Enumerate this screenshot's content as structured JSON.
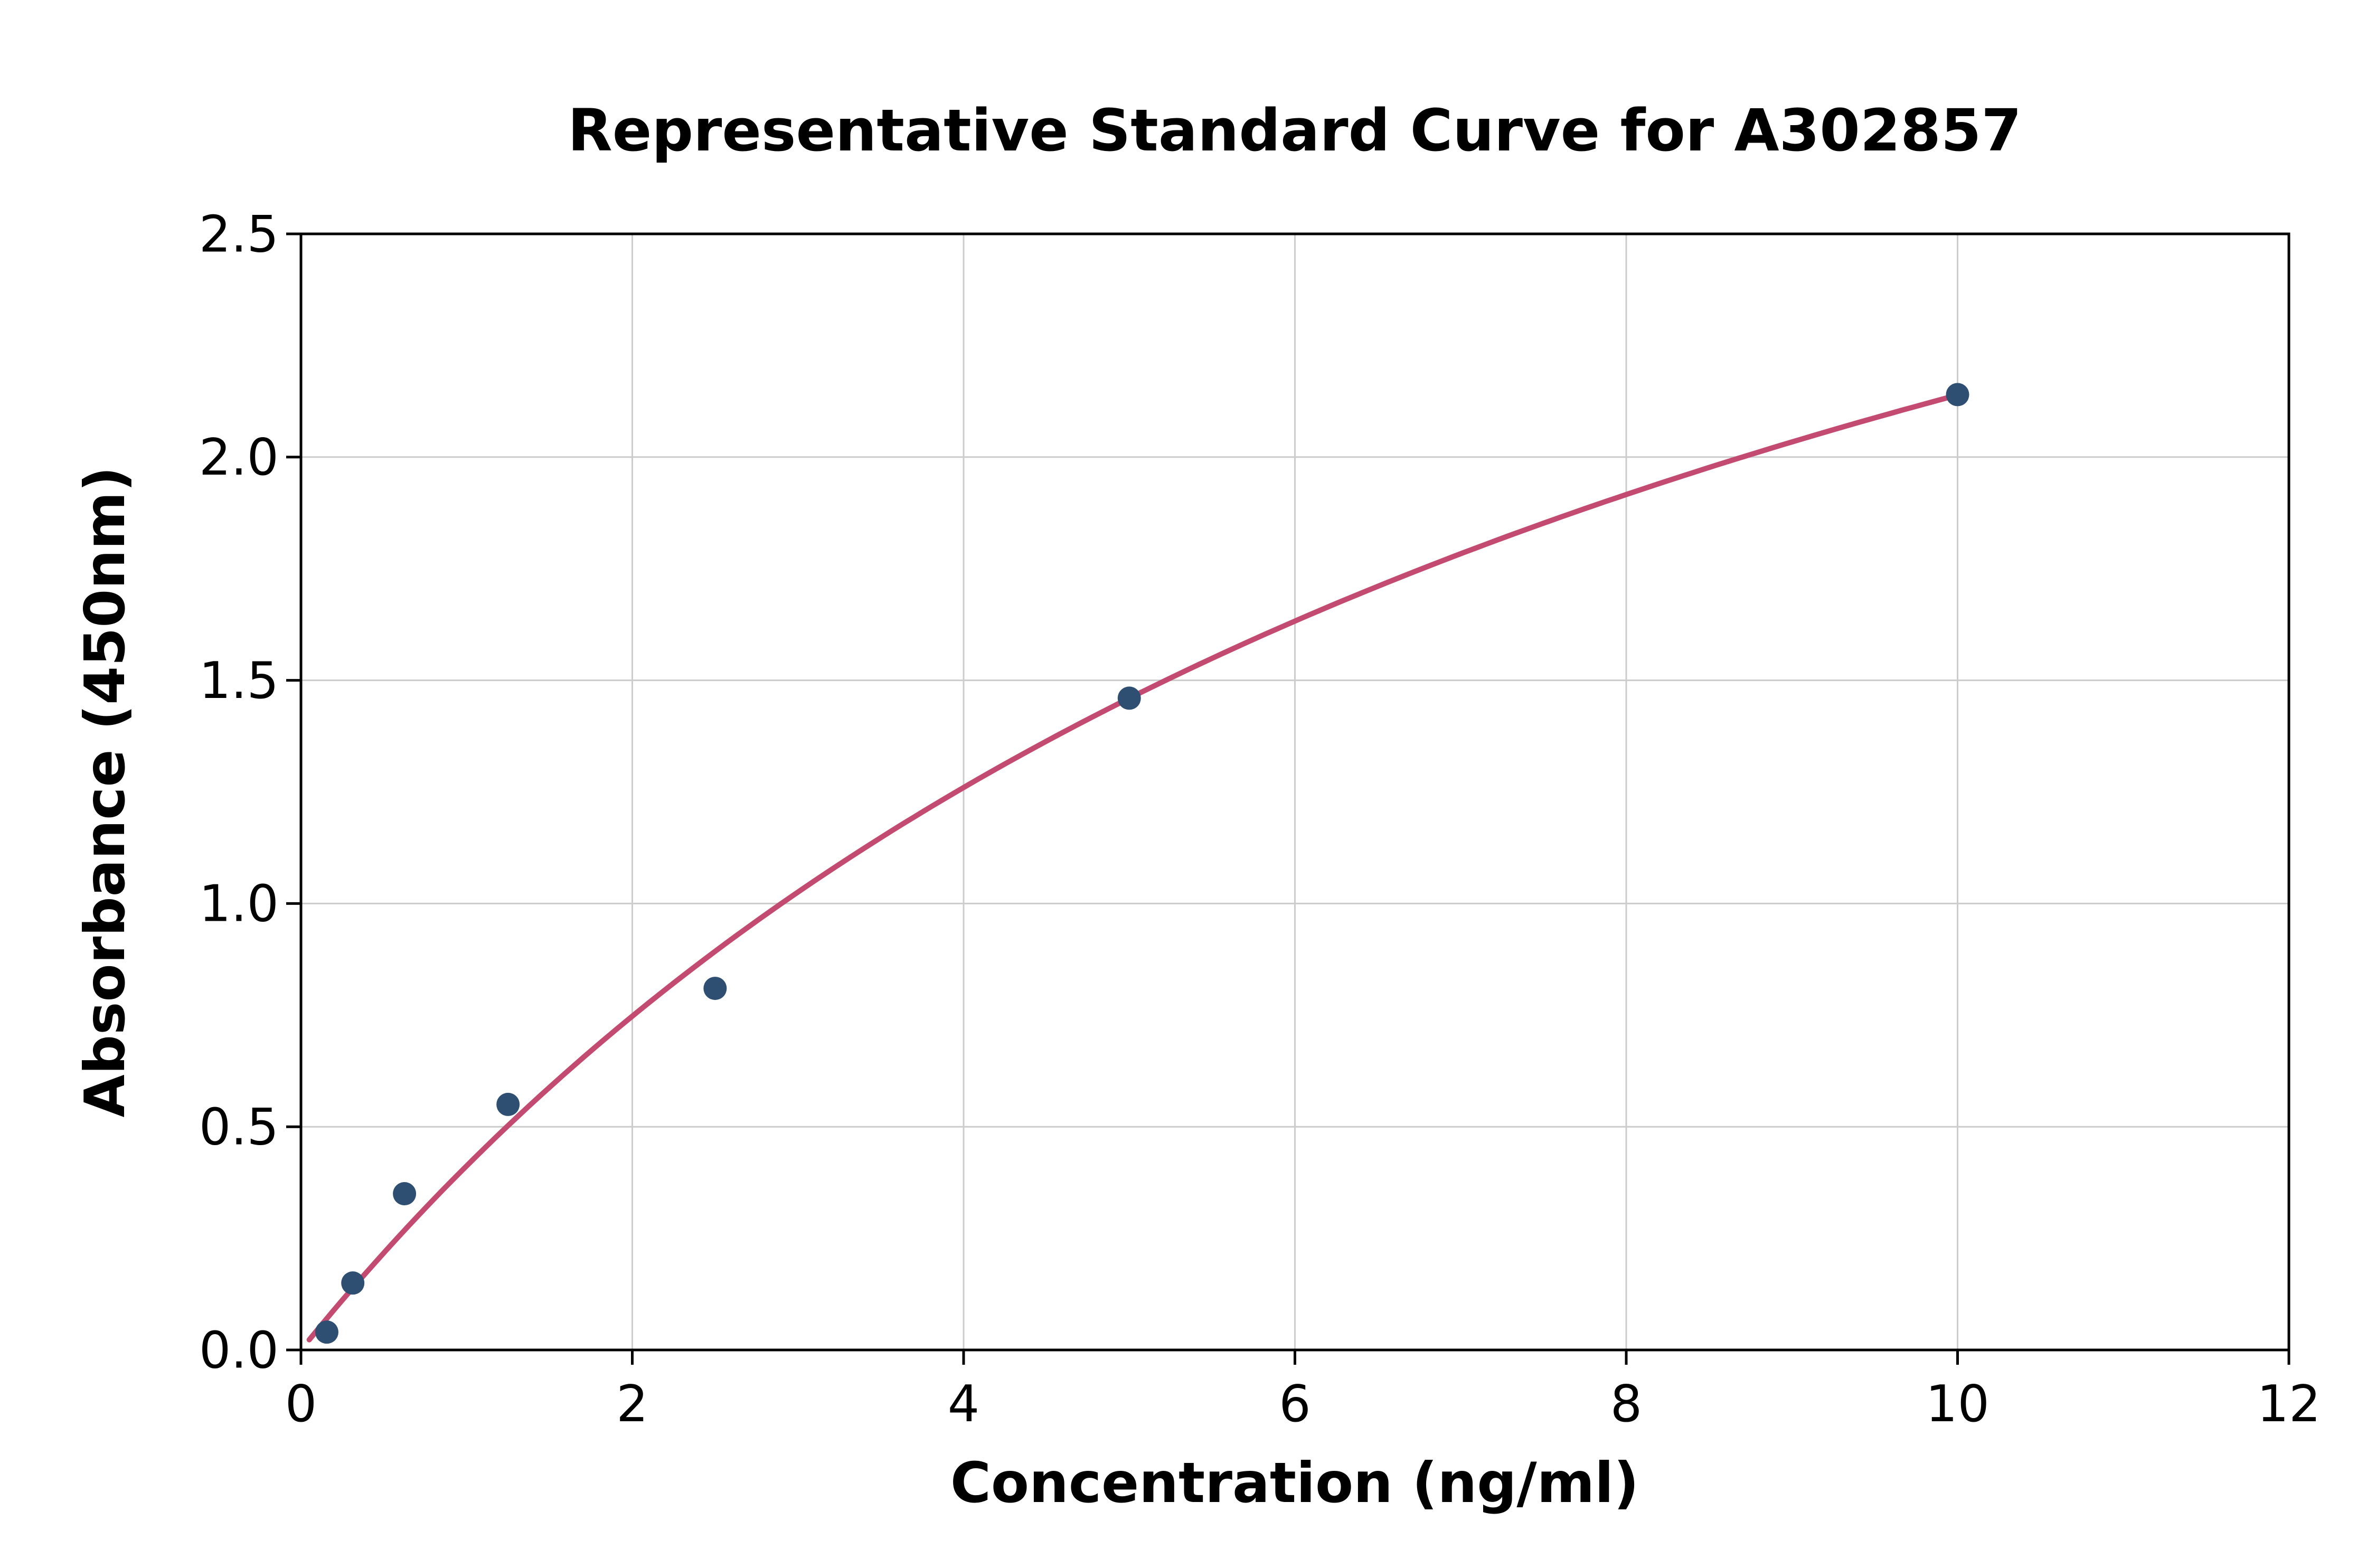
{
  "chart_data": {
    "type": "scatter",
    "title": "Representative Standard Curve for A302857",
    "xlabel": "Concentration (ng/ml)",
    "ylabel": "Absorbance (450nm)",
    "xlim": [
      0,
      12
    ],
    "ylim": [
      0,
      2.5
    ],
    "grid": true,
    "legend": "none",
    "xticks": [
      {
        "value": 0,
        "label": "0"
      },
      {
        "value": 2,
        "label": "2"
      },
      {
        "value": 4,
        "label": "4"
      },
      {
        "value": 6,
        "label": "6"
      },
      {
        "value": 8,
        "label": "8"
      },
      {
        "value": 10,
        "label": "10"
      },
      {
        "value": 12,
        "label": "12"
      }
    ],
    "yticks": [
      {
        "value": 0.0,
        "label": "0.0"
      },
      {
        "value": 0.5,
        "label": "0.5"
      },
      {
        "value": 1.0,
        "label": "1.0"
      },
      {
        "value": 1.5,
        "label": "1.5"
      },
      {
        "value": 2.0,
        "label": "2.0"
      },
      {
        "value": 2.5,
        "label": "2.5"
      }
    ],
    "points": [
      {
        "x": 0.156,
        "y": 0.04
      },
      {
        "x": 0.313,
        "y": 0.15
      },
      {
        "x": 0.625,
        "y": 0.35
      },
      {
        "x": 1.25,
        "y": 0.55
      },
      {
        "x": 2.5,
        "y": 0.81
      },
      {
        "x": 5,
        "y": 1.46
      },
      {
        "x": 10,
        "y": 2.14
      }
    ],
    "fit_curve": {
      "model": "y = a*x/(b+x)",
      "a": 4.0,
      "b": 8.7,
      "x_start": 0.05,
      "x_end": 10.0
    },
    "colors": {
      "point_color": "#2f4f72",
      "line_color": "#c34a70",
      "grid_color": "#cccccc",
      "axis_color": "#000000",
      "background": "#ffffff"
    }
  }
}
